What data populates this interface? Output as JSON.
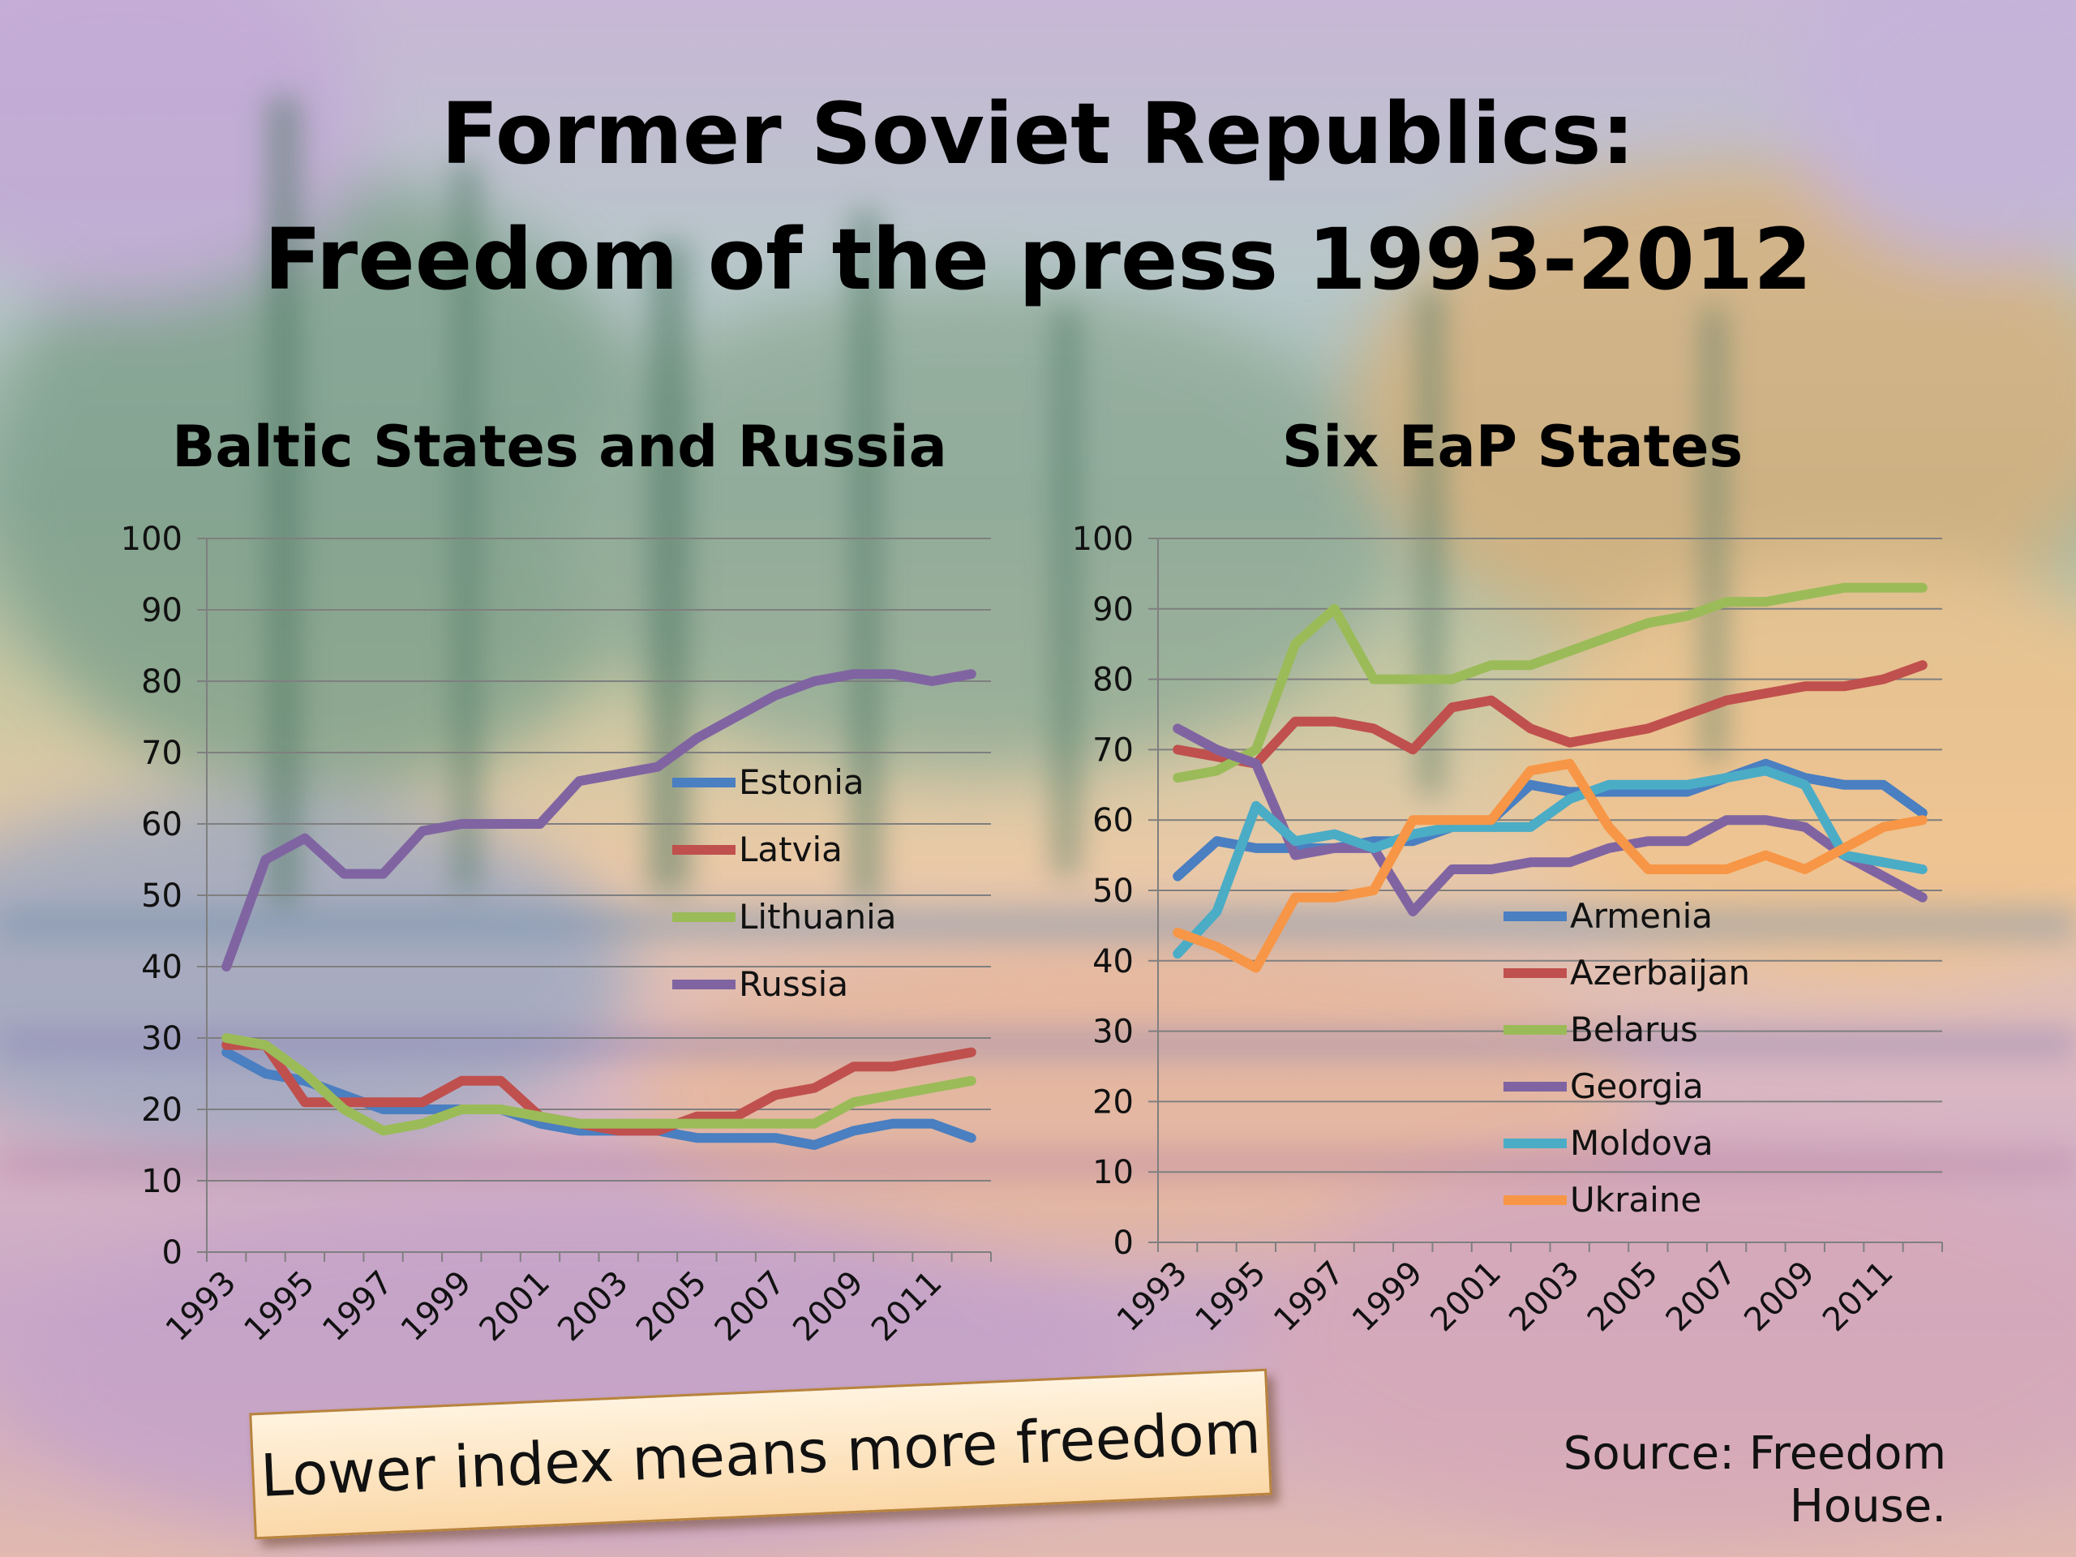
{
  "slide": {
    "title_line1": "Former Soviet Republics:",
    "title_line2": "Freedom of the press 1993-2012",
    "callout": "Lower index means more freedom",
    "source": "Source: Freedom House."
  },
  "chart_data": [
    {
      "type": "line",
      "title": "Baltic States and Russia",
      "x": [
        1993,
        1994,
        1995,
        1996,
        1997,
        1998,
        1999,
        2000,
        2001,
        2002,
        2003,
        2004,
        2005,
        2006,
        2007,
        2008,
        2009,
        2010,
        2011,
        2012
      ],
      "x_tick_labels": [
        "1993",
        "1995",
        "1997",
        "1999",
        "2001",
        "2003",
        "2005",
        "2007",
        "2009",
        "2011"
      ],
      "ylim": [
        0,
        100
      ],
      "y_ticks": [
        "0",
        "10",
        "20",
        "30",
        "40",
        "50",
        "60",
        "70",
        "80",
        "90",
        "100"
      ],
      "grid": true,
      "legend_position": "inside-center-right",
      "series": [
        {
          "name": "Estonia",
          "color": "#4a7fc1",
          "values": [
            28,
            25,
            24,
            22,
            20,
            20,
            20,
            20,
            18,
            17,
            17,
            17,
            16,
            16,
            16,
            15,
            17,
            18,
            18,
            16
          ]
        },
        {
          "name": "Latvia",
          "color": "#c0504d",
          "values": [
            29,
            29,
            21,
            21,
            21,
            21,
            24,
            24,
            19,
            18,
            17,
            17,
            19,
            19,
            22,
            23,
            26,
            26,
            27,
            28
          ]
        },
        {
          "name": "Lithuania",
          "color": "#9bbb59",
          "values": [
            30,
            29,
            25,
            20,
            17,
            18,
            20,
            20,
            19,
            18,
            18,
            18,
            18,
            18,
            18,
            18,
            21,
            22,
            23,
            24
          ]
        },
        {
          "name": "Russia",
          "color": "#8064a2",
          "values": [
            40,
            55,
            58,
            53,
            53,
            59,
            60,
            60,
            60,
            66,
            67,
            68,
            72,
            75,
            78,
            80,
            81,
            81,
            80,
            81
          ]
        }
      ]
    },
    {
      "type": "line",
      "title": "Six EaP States",
      "x": [
        1993,
        1994,
        1995,
        1996,
        1997,
        1998,
        1999,
        2000,
        2001,
        2002,
        2003,
        2004,
        2005,
        2006,
        2007,
        2008,
        2009,
        2010,
        2011,
        2012
      ],
      "x_tick_labels": [
        "1993",
        "1995",
        "1997",
        "1999",
        "2001",
        "2003",
        "2005",
        "2007",
        "2009",
        "2011"
      ],
      "ylim": [
        0,
        100
      ],
      "y_ticks": [
        "0",
        "10",
        "20",
        "30",
        "40",
        "50",
        "60",
        "70",
        "80",
        "90",
        "100"
      ],
      "grid": true,
      "legend_position": "inside-bottom-right",
      "series": [
        {
          "name": "Armenia",
          "color": "#4a7fc1",
          "values": [
            52,
            57,
            56,
            56,
            56,
            57,
            57,
            59,
            60,
            65,
            64,
            64,
            64,
            64,
            66,
            68,
            66,
            65,
            65,
            61
          ]
        },
        {
          "name": "Azerbaijan",
          "color": "#c0504d",
          "values": [
            70,
            69,
            68,
            74,
            74,
            73,
            70,
            76,
            77,
            73,
            71,
            72,
            73,
            75,
            77,
            78,
            79,
            79,
            80,
            82
          ]
        },
        {
          "name": "Belarus",
          "color": "#9bbb59",
          "values": [
            66,
            67,
            70,
            85,
            90,
            80,
            80,
            80,
            82,
            82,
            84,
            86,
            88,
            89,
            91,
            91,
            92,
            93,
            93,
            93
          ]
        },
        {
          "name": "Georgia",
          "color": "#8064a2",
          "values": [
            73,
            70,
            68,
            55,
            56,
            56,
            47,
            53,
            53,
            54,
            54,
            56,
            57,
            57,
            60,
            60,
            59,
            55,
            52,
            49
          ]
        },
        {
          "name": "Moldova",
          "color": "#4bacc6",
          "values": [
            41,
            47,
            62,
            57,
            58,
            56,
            58,
            59,
            59,
            59,
            63,
            65,
            65,
            65,
            66,
            67,
            65,
            55,
            54,
            53
          ]
        },
        {
          "name": "Ukraine",
          "color": "#f79646",
          "values": [
            44,
            42,
            39,
            49,
            49,
            50,
            60,
            60,
            60,
            67,
            68,
            59,
            53,
            53,
            53,
            55,
            53,
            56,
            59,
            60
          ]
        }
      ]
    }
  ]
}
